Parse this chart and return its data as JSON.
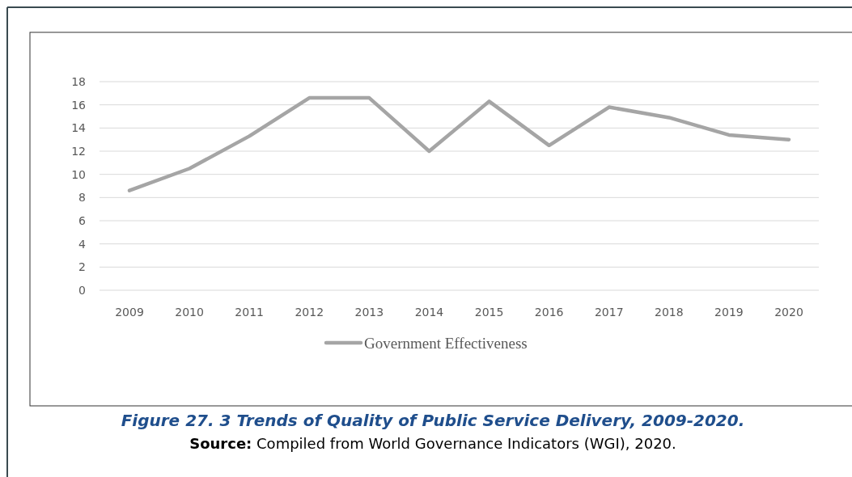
{
  "chart_data": {
    "type": "line",
    "title": "Figure 27. 3 Trends of Quality of Public Service Delivery, 2009-2020.",
    "annotations": [
      "Source: Compiled from World Governance Indicators (WGI), 2020."
    ],
    "categories": [
      "2009",
      "2010",
      "2011",
      "2012",
      "2013",
      "2014",
      "2015",
      "2016",
      "2017",
      "2018",
      "2019",
      "2020"
    ],
    "series": [
      {
        "name": "Government Effectiveness",
        "color": "#a5a5a5",
        "values": [
          8.6,
          10.5,
          13.3,
          16.6,
          16.6,
          12.0,
          16.3,
          12.5,
          15.8,
          14.9,
          13.4,
          13.0
        ]
      }
    ],
    "ylim": [
      0,
      18
    ],
    "yticks": [
      0,
      2,
      4,
      6,
      8,
      10,
      12,
      14,
      16,
      18
    ],
    "grid": "y",
    "legend": "bottom",
    "marker": "none",
    "line_style": "solid"
  }
}
